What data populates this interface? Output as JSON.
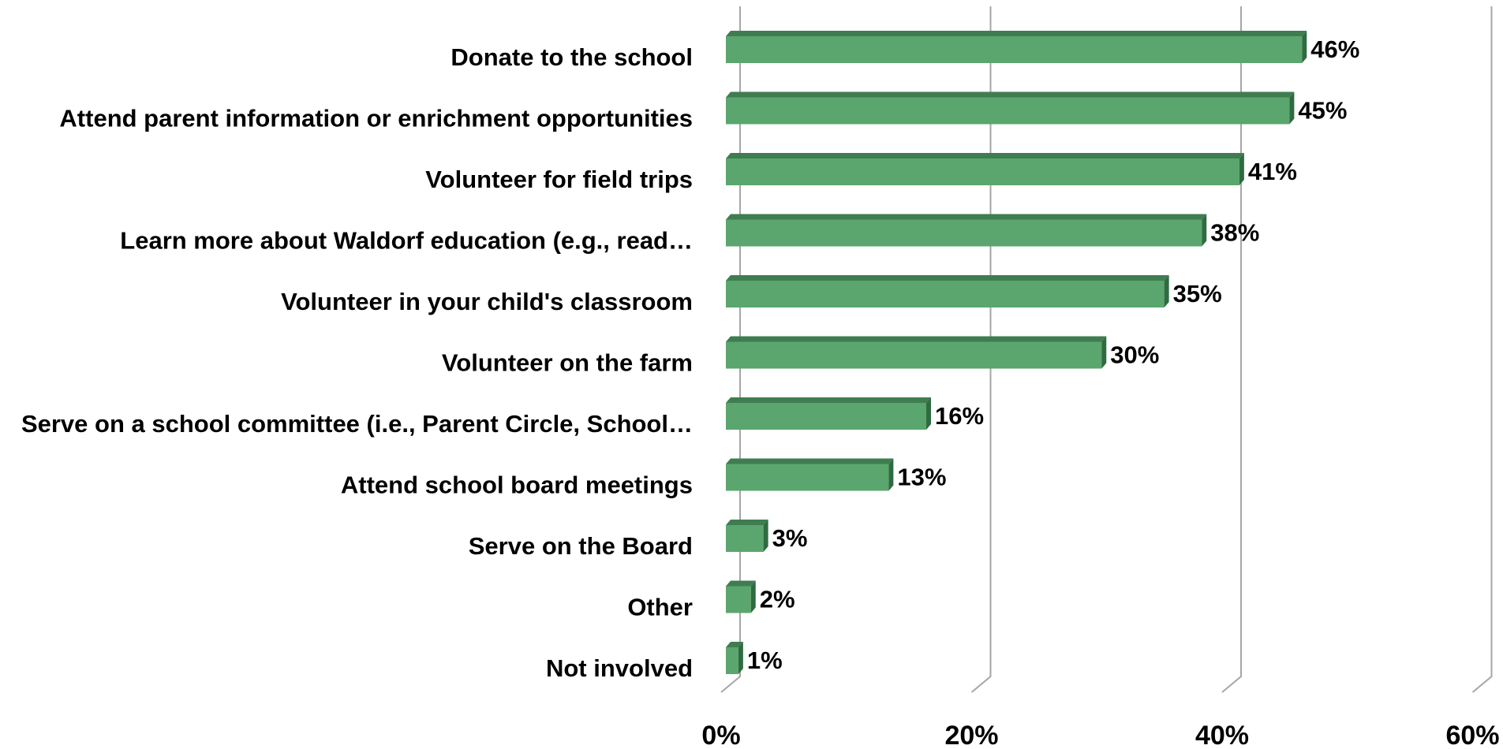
{
  "chart_data": {
    "type": "bar",
    "orientation": "horizontal",
    "three_d": true,
    "categories": [
      "Donate to the school",
      "Attend parent information or enrichment opportunities",
      "Volunteer for field trips",
      "Learn more about Waldorf education (e.g., read…",
      "Volunteer in your child's classroom",
      "Volunteer on the farm",
      "Serve on a school committee (i.e., Parent Circle, School…",
      "Attend school board meetings",
      "Serve on the Board",
      "Other",
      "Not involved"
    ],
    "values": [
      46,
      45,
      41,
      38,
      35,
      30,
      16,
      13,
      3,
      2,
      1
    ],
    "value_labels": [
      "46%",
      "45%",
      "41%",
      "38%",
      "35%",
      "30%",
      "16%",
      "13%",
      "3%",
      "2%",
      "1%"
    ],
    "x_ticks": [
      0,
      20,
      40,
      60
    ],
    "x_tick_labels": [
      "0%",
      "20%",
      "40%",
      "60%"
    ],
    "xlim": [
      0,
      60
    ],
    "grid": true,
    "legend": "none",
    "colors": {
      "bar_front": "#5aa66e",
      "bar_top": "#3f7d51",
      "bar_side": "#2f6b41",
      "grid": "#a6a6a6"
    }
  }
}
